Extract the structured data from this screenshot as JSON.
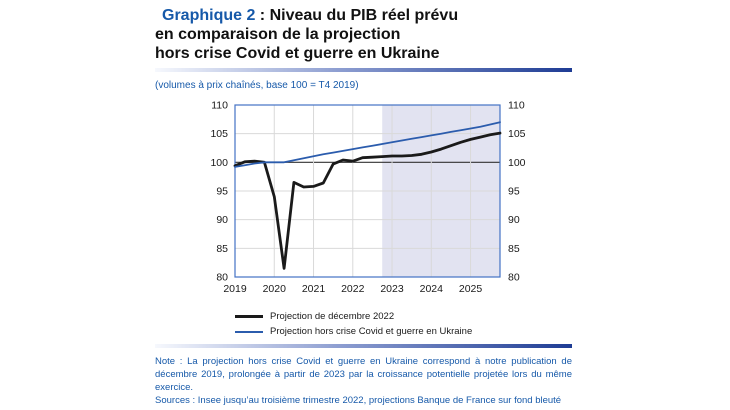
{
  "header": {
    "title_prefix": "Graphique 2",
    "title_line1_rest": " : Niveau du PIB réel prévu",
    "title_line2": "en comparaison de la projection",
    "title_line3": "hors crise Covid et guerre en Ukraine",
    "subtitle": "(volumes à prix chaînés, base 100 = T4 2019)"
  },
  "colors": {
    "accent_blue": "#1659a9",
    "rule_light": "#f6f8fd",
    "rule_mid": "#8b9cd0",
    "rule_dark": "#1e3c94",
    "plot_border": "#4472c4",
    "grid": "#d9d9d9",
    "baseline": "#333333",
    "shade": "#e2e3f1",
    "line_black": "#1a1a1a",
    "line_blue": "#2b5cad"
  },
  "chart_data": {
    "type": "line",
    "frequency": "quarterly",
    "x_start": "2019-T1",
    "x_end": "2025-T4",
    "x_tick_labels": [
      "2019",
      "2020",
      "2021",
      "2022",
      "2023",
      "2024",
      "2025"
    ],
    "ticks_every_n_points": 4,
    "y_ticks": [
      80,
      85,
      90,
      95,
      100,
      105,
      110
    ],
    "ylim": [
      80,
      110
    ],
    "baseline": 100,
    "grid": true,
    "y_labels_both_sides": true,
    "shaded_from_index": 15,
    "shaded_region_meaning": "projections Banque de France sur fond bleuté (à partir de T4 2022)",
    "legend_position": "below",
    "series": [
      {
        "name": "Projection de décembre 2022",
        "color": "#1a1a1a",
        "width": 2.8,
        "values": [
          99.4,
          100.1,
          100.2,
          100.0,
          94.0,
          81.5,
          96.5,
          95.7,
          95.8,
          96.4,
          99.7,
          100.4,
          100.2,
          100.8,
          100.9,
          101.0,
          101.1,
          101.1,
          101.2,
          101.4,
          101.8,
          102.3,
          102.9,
          103.5,
          104.0,
          104.4,
          104.8,
          105.1
        ]
      },
      {
        "name": "Projection hors crise Covid et guerre en Ukraine",
        "color": "#2b5cad",
        "width": 1.8,
        "values": [
          99.2,
          99.5,
          99.8,
          100.0,
          100.0,
          100.0,
          100.35,
          100.7,
          101.05,
          101.4,
          101.7,
          102.0,
          102.3,
          102.6,
          102.9,
          103.2,
          103.5,
          103.8,
          104.1,
          104.4,
          104.7,
          105.0,
          105.3,
          105.6,
          105.9,
          106.2,
          106.6,
          107.0
        ]
      }
    ]
  },
  "footer": {
    "note": "Note : La projection hors crise Covid et guerre en Ukraine correspond à notre publication de décembre 2019, prolongée à partir de 2023 par la croissance potentielle projetée lors du même exercice.",
    "sources": "Sources : Insee jusqu’au troisième trimestre 2022, projections Banque de France sur fond bleuté"
  }
}
